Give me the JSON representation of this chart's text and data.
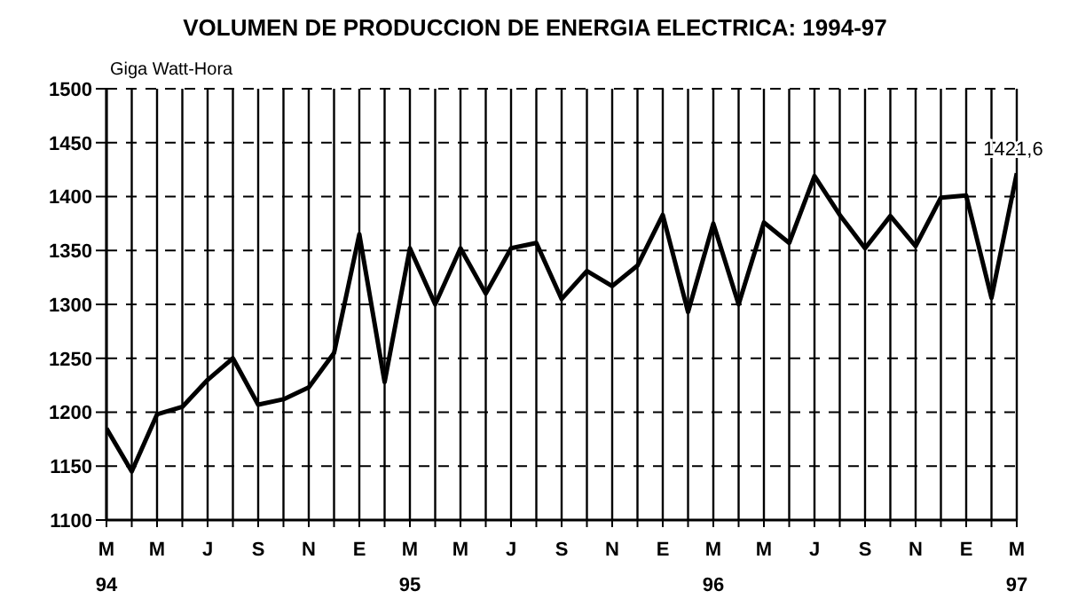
{
  "chart_data": {
    "type": "line",
    "title": "VOLUMEN DE PRODUCCION DE ENERGIA ELECTRICA: 1994-97",
    "ylabel": "Giga Watt-Hora",
    "categories": [
      "M 94",
      null,
      "M",
      null,
      "J",
      null,
      "S",
      null,
      "N",
      null,
      "E",
      null,
      "M 95",
      null,
      "M",
      null,
      "J",
      null,
      "S",
      null,
      "N",
      null,
      "E",
      null,
      "M 96",
      null,
      "M",
      null,
      "J",
      null,
      "S",
      null,
      "N",
      null,
      "E",
      null,
      "M 97"
    ],
    "series": [
      {
        "color": "#000000",
        "values": [
          1185,
          1145,
          1198,
          1205,
          1230,
          1250,
          1207,
          1212,
          1223,
          1255,
          1365,
          1228,
          1352,
          1300,
          1352,
          1310,
          1352,
          1357,
          1305,
          1331,
          1317,
          1336,
          1383,
          1293,
          1375,
          1300,
          1376,
          1357,
          1419,
          1383,
          1352,
          1382,
          1354,
          1399,
          1401,
          1306,
          1421.6
        ],
        "value_labels": [
          null,
          null,
          null,
          null,
          null,
          null,
          null,
          null,
          null,
          null,
          null,
          null,
          null,
          null,
          null,
          null,
          null,
          null,
          null,
          null,
          null,
          null,
          null,
          null,
          null,
          null,
          null,
          null,
          null,
          null,
          null,
          null,
          null,
          null,
          null,
          null,
          "1421,6"
        ]
      }
    ],
    "ylim": [
      1100,
      1500
    ],
    "yticks": [
      1100,
      1150,
      1200,
      1250,
      1300,
      1350,
      1400,
      1450,
      1500
    ],
    "grid": true,
    "marker": "none",
    "line_style": "solid"
  }
}
